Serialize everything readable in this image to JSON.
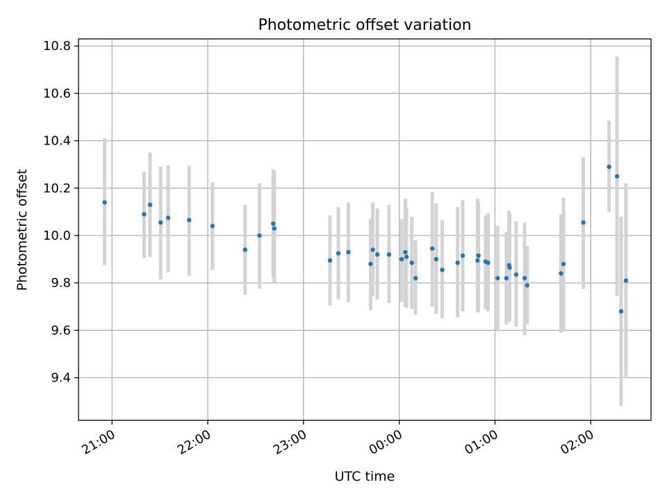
{
  "colors": {
    "point": "#1f77b4",
    "errorbar": "#d3d3d3",
    "grid": "#b0b0b0",
    "axis": "#000000"
  },
  "chart_data": {
    "type": "scatter",
    "title": "Photometric offset variation",
    "xlabel": "UTC time",
    "ylabel": "Photometric offset",
    "x_unit": "hours after 00:00 UTC (negative = previous evening)",
    "xlim": [
      -3.35,
      2.63
    ],
    "ylim": [
      9.22,
      10.83
    ],
    "grid": true,
    "legend": "none",
    "x_ticks": [
      {
        "value": -3,
        "label": "21:00"
      },
      {
        "value": -2,
        "label": "22:00"
      },
      {
        "value": -1,
        "label": "23:00"
      },
      {
        "value": 0,
        "label": "00:00"
      },
      {
        "value": 1,
        "label": "01:00"
      },
      {
        "value": 2,
        "label": "02:00"
      }
    ],
    "y_ticks": [
      {
        "value": 9.4,
        "label": "9.4"
      },
      {
        "value": 9.6,
        "label": "9.6"
      },
      {
        "value": 9.8,
        "label": "9.8"
      },
      {
        "value": 10.0,
        "label": "10.0"
      },
      {
        "value": 10.2,
        "label": "10.2"
      },
      {
        "value": 10.4,
        "label": "10.4"
      },
      {
        "value": 10.6,
        "label": "10.6"
      },
      {
        "value": 10.8,
        "label": "10.8"
      }
    ],
    "series": [
      {
        "points": [
          {
            "x": -3.077,
            "y": 10.14,
            "low": 9.875,
            "high": 10.41
          },
          {
            "x": -2.665,
            "y": 10.09,
            "low": 9.905,
            "high": 10.27
          },
          {
            "x": -2.603,
            "y": 10.13,
            "low": 9.91,
            "high": 10.35
          },
          {
            "x": -2.492,
            "y": 10.055,
            "low": 9.815,
            "high": 10.29
          },
          {
            "x": -2.414,
            "y": 10.075,
            "low": 9.845,
            "high": 10.295
          },
          {
            "x": -2.194,
            "y": 10.065,
            "low": 9.83,
            "high": 10.295
          },
          {
            "x": -1.951,
            "y": 10.04,
            "low": 9.855,
            "high": 10.225
          },
          {
            "x": -1.61,
            "y": 9.94,
            "low": 9.75,
            "high": 10.13
          },
          {
            "x": -1.46,
            "y": 10.0,
            "low": 9.775,
            "high": 10.22
          },
          {
            "x": -1.316,
            "y": 10.05,
            "low": 9.82,
            "high": 10.28
          },
          {
            "x": -1.305,
            "y": 10.03,
            "low": 9.8,
            "high": 10.27
          },
          {
            "x": -0.723,
            "y": 9.895,
            "low": 9.705,
            "high": 10.085
          },
          {
            "x": -0.636,
            "y": 9.925,
            "low": 9.73,
            "high": 10.12
          },
          {
            "x": -0.531,
            "y": 9.93,
            "low": 9.72,
            "high": 10.14
          },
          {
            "x": -0.299,
            "y": 9.88,
            "low": 9.685,
            "high": 10.07
          },
          {
            "x": -0.276,
            "y": 9.94,
            "low": 9.745,
            "high": 10.14
          },
          {
            "x": -0.229,
            "y": 9.92,
            "low": 9.73,
            "high": 10.115
          },
          {
            "x": -0.107,
            "y": 9.92,
            "low": 9.715,
            "high": 10.13
          },
          {
            "x": 0.025,
            "y": 9.9,
            "low": 9.72,
            "high": 10.07
          },
          {
            "x": 0.064,
            "y": 9.93,
            "low": 9.7,
            "high": 10.155
          },
          {
            "x": 0.076,
            "y": 9.91,
            "low": 9.695,
            "high": 10.12
          },
          {
            "x": 0.131,
            "y": 9.885,
            "low": 9.69,
            "high": 10.08
          },
          {
            "x": 0.171,
            "y": 9.82,
            "low": 9.665,
            "high": 9.98
          },
          {
            "x": 0.345,
            "y": 9.945,
            "low": 9.7,
            "high": 10.185
          },
          {
            "x": 0.386,
            "y": 9.9,
            "low": 9.67,
            "high": 10.135
          },
          {
            "x": 0.449,
            "y": 9.855,
            "low": 9.65,
            "high": 10.065
          },
          {
            "x": 0.61,
            "y": 9.885,
            "low": 9.655,
            "high": 10.12
          },
          {
            "x": 0.663,
            "y": 9.915,
            "low": 9.68,
            "high": 10.15
          },
          {
            "x": 0.818,
            "y": 9.895,
            "low": 9.675,
            "high": 10.155
          },
          {
            "x": 0.827,
            "y": 9.915,
            "low": 9.68,
            "high": 10.14
          },
          {
            "x": 0.902,
            "y": 9.89,
            "low": 9.69,
            "high": 10.085
          },
          {
            "x": 0.928,
            "y": 9.885,
            "low": 9.68,
            "high": 10.095
          },
          {
            "x": 1.028,
            "y": 9.82,
            "low": 9.595,
            "high": 10.04
          },
          {
            "x": 1.119,
            "y": 9.82,
            "low": 9.625,
            "high": 10.015
          },
          {
            "x": 1.146,
            "y": 9.875,
            "low": 9.635,
            "high": 10.105
          },
          {
            "x": 1.154,
            "y": 9.865,
            "low": 9.64,
            "high": 10.09
          },
          {
            "x": 1.221,
            "y": 9.835,
            "low": 9.615,
            "high": 10.06
          },
          {
            "x": 1.31,
            "y": 9.82,
            "low": 9.58,
            "high": 10.055
          },
          {
            "x": 1.336,
            "y": 9.79,
            "low": 9.625,
            "high": 9.955
          },
          {
            "x": 1.69,
            "y": 9.84,
            "low": 9.59,
            "high": 10.09
          },
          {
            "x": 1.716,
            "y": 9.88,
            "low": 9.6,
            "high": 10.16
          },
          {
            "x": 1.923,
            "y": 10.055,
            "low": 9.775,
            "high": 10.33
          },
          {
            "x": 2.192,
            "y": 10.29,
            "low": 10.1,
            "high": 10.485
          },
          {
            "x": 2.275,
            "y": 10.25,
            "low": 9.745,
            "high": 10.755
          },
          {
            "x": 2.318,
            "y": 9.68,
            "low": 9.28,
            "high": 10.08
          },
          {
            "x": 2.368,
            "y": 9.81,
            "low": 9.4,
            "high": 10.22
          }
        ]
      }
    ]
  }
}
